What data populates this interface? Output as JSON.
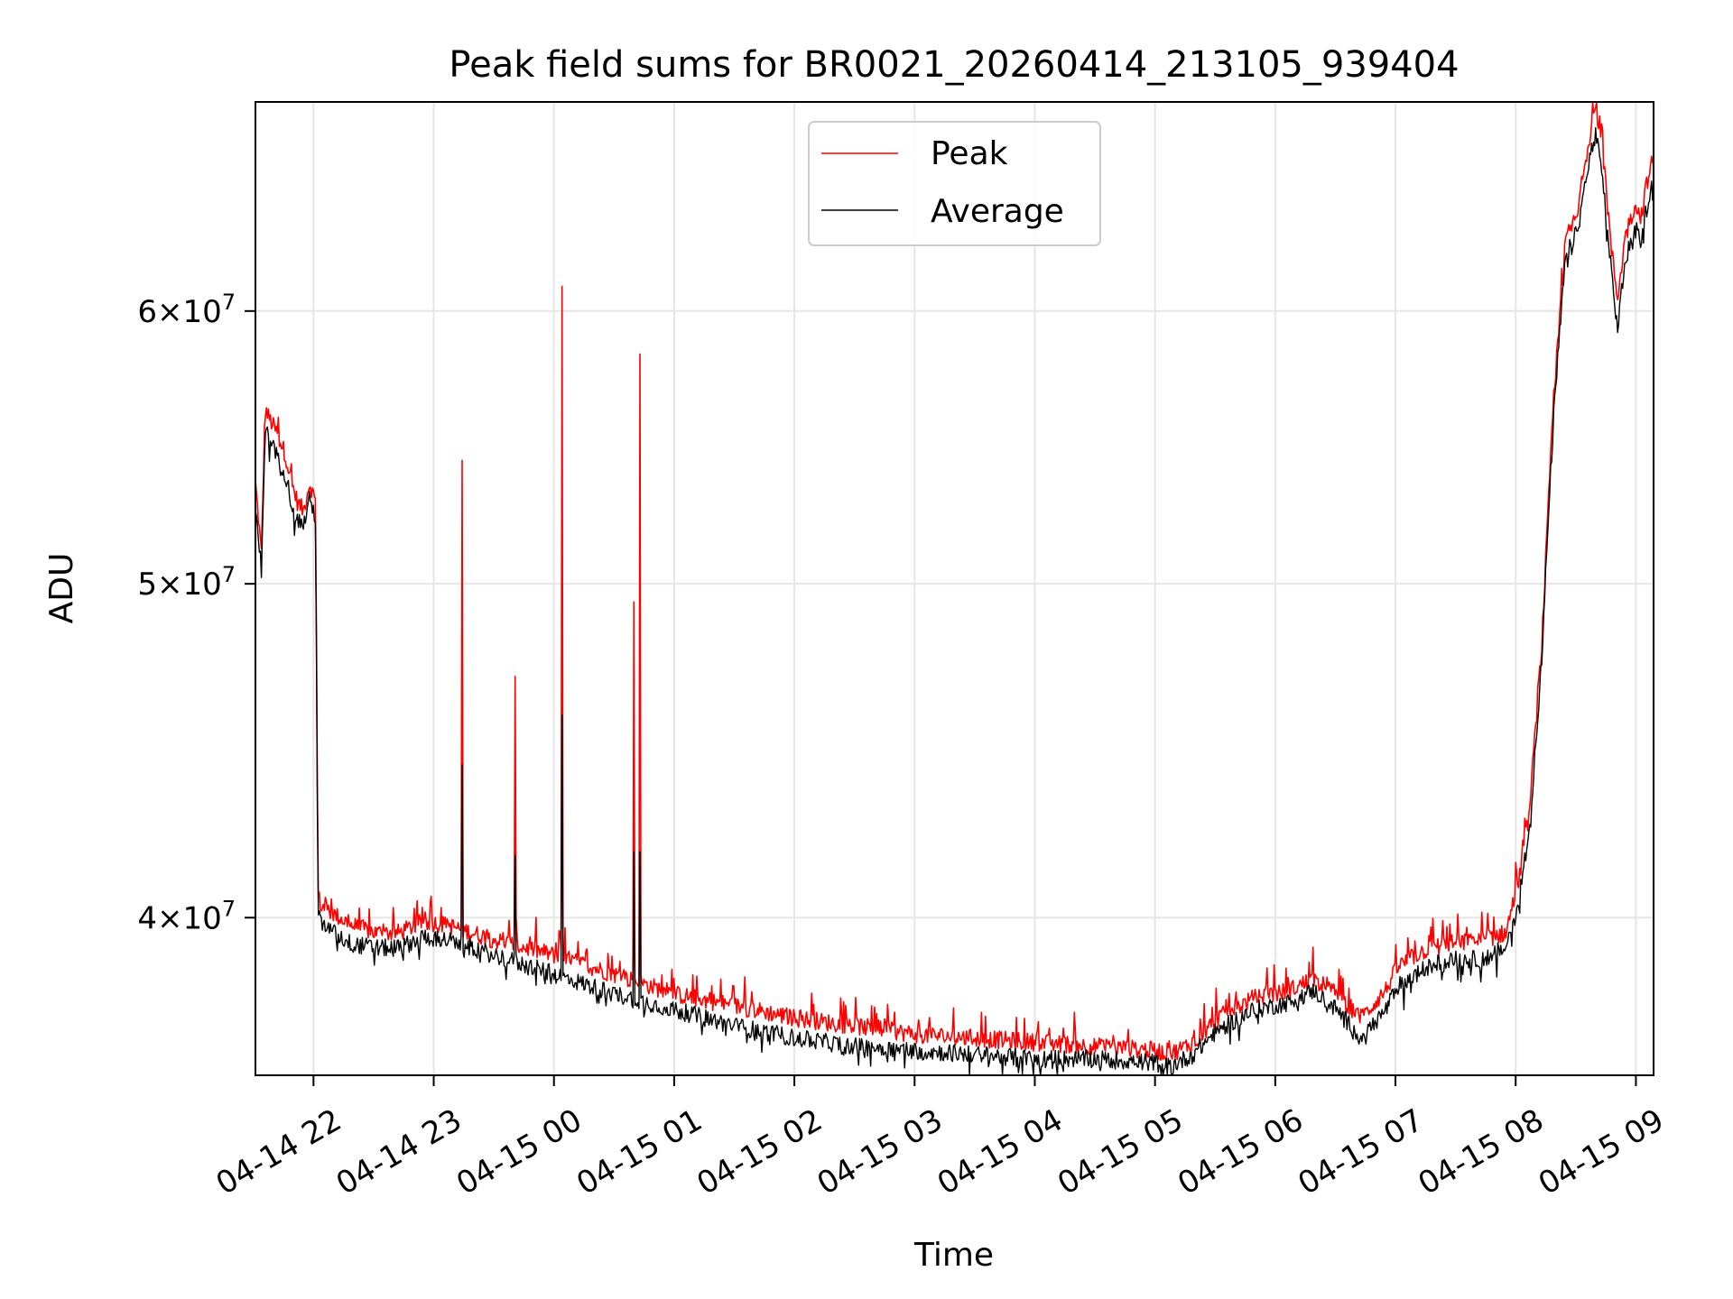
{
  "chart_data": {
    "type": "line",
    "title": "Peak field sums for BR0021_20260414_213105_939404",
    "xlabel": "Time",
    "ylabel": "ADU",
    "y_scale": "log",
    "x_unit": "hours since 2026-04-14 21:31",
    "xlim": [
      0,
      11.63
    ],
    "ylim": [
      36000000,
      69000000
    ],
    "grid": true,
    "legend_position": "upper center",
    "x_ticks": [
      {
        "value": 0.483,
        "label": "04-14 22"
      },
      {
        "value": 1.483,
        "label": "04-14 23"
      },
      {
        "value": 2.483,
        "label": "04-15 00"
      },
      {
        "value": 3.483,
        "label": "04-15 01"
      },
      {
        "value": 4.483,
        "label": "04-15 02"
      },
      {
        "value": 5.483,
        "label": "04-15 03"
      },
      {
        "value": 6.483,
        "label": "04-15 04"
      },
      {
        "value": 7.483,
        "label": "04-15 05"
      },
      {
        "value": 8.483,
        "label": "04-15 06"
      },
      {
        "value": 9.483,
        "label": "04-15 07"
      },
      {
        "value": 10.483,
        "label": "04-15 08"
      },
      {
        "value": 11.483,
        "label": "04-15 09"
      }
    ],
    "y_ticks": [
      {
        "value": 40000000,
        "mantissa": "4",
        "exponent": "7"
      },
      {
        "value": 50000000,
        "mantissa": "5",
        "exponent": "7"
      },
      {
        "value": 60000000,
        "mantissa": "6",
        "exponent": "7"
      }
    ],
    "y_tick_times": "×10",
    "series": [
      {
        "name": "Peak",
        "color": "#ff0000",
        "x": [
          0,
          0.05,
          0.08,
          0.12,
          0.18,
          0.25,
          0.3,
          0.35,
          0.4,
          0.45,
          0.5,
          0.52,
          0.55,
          0.6,
          0.8,
          1.0,
          1.2,
          1.4,
          1.6,
          2.0,
          2.5,
          3.0,
          3.5,
          4.0,
          4.5,
          5.0,
          5.5,
          6.0,
          6.5,
          7.0,
          7.5,
          7.6,
          7.8,
          8.0,
          8.3,
          8.6,
          8.8,
          9.0,
          9.2,
          9.4,
          9.5,
          9.7,
          9.9,
          10.2,
          10.4,
          10.5,
          10.6,
          10.7,
          10.8,
          10.9,
          11.0,
          11.05,
          11.1,
          11.15,
          11.2,
          11.28,
          11.33,
          11.38,
          11.42,
          11.48,
          11.52,
          11.58,
          11.63
        ],
        "y": [
          53500000,
          51000000,
          56200000,
          55800000,
          55300000,
          54500000,
          53500000,
          52800000,
          52500000,
          53500000,
          52800000,
          40600000,
          40300000,
          40200000,
          39800000,
          39600000,
          39600000,
          39900000,
          39800000,
          39400000,
          39000000,
          38500000,
          38000000,
          37700000,
          37400000,
          37200000,
          37000000,
          36900000,
          36800000,
          36700000,
          36600000,
          36500000,
          36800000,
          37400000,
          37900000,
          38100000,
          38400000,
          38000000,
          37400000,
          38100000,
          38700000,
          39100000,
          39300000,
          39400000,
          39600000,
          40800000,
          43000000,
          48000000,
          56500000,
          63000000,
          64000000,
          66000000,
          67500000,
          68800000,
          67000000,
          62500000,
          60500000,
          62500000,
          63500000,
          64500000,
          63800000,
          65500000,
          66500000
        ]
      },
      {
        "name": "Average",
        "color": "#000000",
        "x": [
          0,
          0.05,
          0.08,
          0.12,
          0.18,
          0.25,
          0.3,
          0.35,
          0.4,
          0.45,
          0.5,
          0.52,
          0.55,
          0.6,
          0.8,
          1.0,
          1.2,
          1.4,
          1.6,
          2.0,
          2.5,
          3.0,
          3.5,
          4.0,
          4.5,
          5.0,
          5.5,
          6.0,
          6.5,
          7.0,
          7.5,
          7.6,
          7.8,
          8.0,
          8.3,
          8.6,
          8.8,
          9.0,
          9.2,
          9.4,
          9.5,
          9.7,
          9.9,
          10.2,
          10.4,
          10.5,
          10.6,
          10.7,
          10.8,
          10.9,
          11.0,
          11.05,
          11.1,
          11.15,
          11.2,
          11.28,
          11.33,
          11.38,
          11.42,
          11.48,
          11.52,
          11.58,
          11.63
        ],
        "y": [
          52500000,
          50500000,
          55500000,
          55000000,
          54500000,
          53800000,
          52800000,
          52200000,
          52000000,
          52900000,
          52300000,
          40100000,
          39800000,
          39700000,
          39300000,
          39200000,
          39200000,
          39500000,
          39400000,
          39000000,
          38500000,
          38000000,
          37600000,
          37200000,
          36900000,
          36700000,
          36600000,
          36500000,
          36400000,
          36400000,
          36300000,
          36200000,
          36500000,
          37100000,
          37600000,
          37800000,
          38100000,
          37600000,
          36900000,
          37600000,
          38200000,
          38600000,
          38900000,
          38900000,
          39200000,
          40300000,
          42500000,
          47500000,
          56000000,
          62300000,
          63300000,
          65000000,
          66500000,
          67500000,
          65800000,
          61500000,
          59300000,
          61500000,
          62500000,
          63500000,
          62800000,
          64500000,
          65500000
        ]
      }
    ],
    "spikes": [
      {
        "x": 1.72,
        "peak": 54300000,
        "average": 44300000
      },
      {
        "x": 2.16,
        "peak": 47000000,
        "average": 41700000
      },
      {
        "x": 2.55,
        "peak": 61000000,
        "average": 45800000
      },
      {
        "x": 3.15,
        "peak": 49400000,
        "average": 41800000
      },
      {
        "x": 3.2,
        "peak": 58300000,
        "average": 41800000
      }
    ]
  }
}
